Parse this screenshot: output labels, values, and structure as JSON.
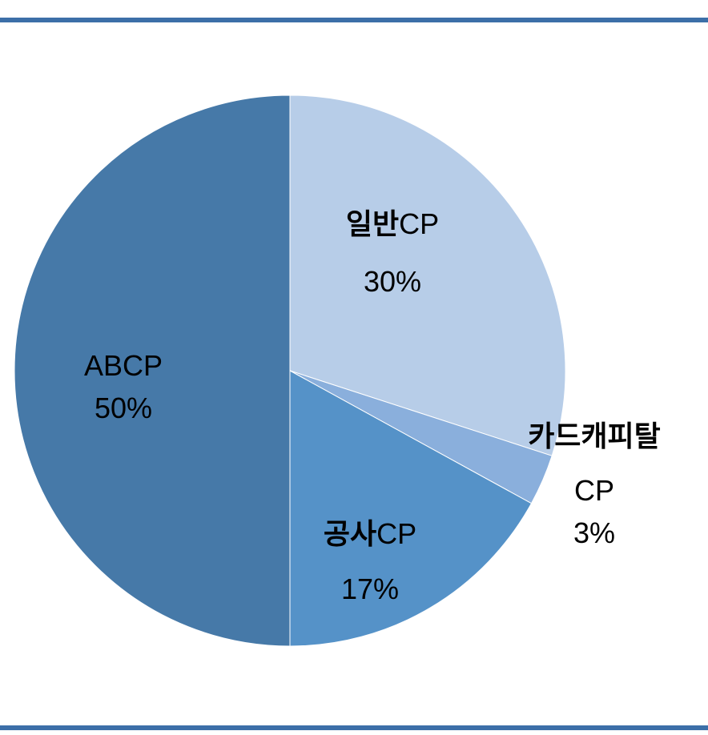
{
  "chart_data": {
    "type": "pie",
    "slices": [
      {
        "label_kr": "일반",
        "label_en": "CP",
        "pct_label": "30%",
        "value": 30,
        "color": "#b7cde8"
      },
      {
        "label_kr": "카드캐피탈",
        "label_en": "CP",
        "pct_label": "3%",
        "value": 3,
        "color": "#8aafdc"
      },
      {
        "label_kr": "공사",
        "label_en": "CP",
        "pct_label": "17%",
        "value": 17,
        "color": "#5592c8"
      },
      {
        "label_kr": "",
        "label_en": "ABCP",
        "pct_label": "50%",
        "value": 50,
        "color": "#4679a8"
      }
    ],
    "start_angle_deg": 0,
    "direction": "clockwise",
    "legend": "none"
  },
  "frame": {
    "rule_color": "#3c6fa8"
  }
}
